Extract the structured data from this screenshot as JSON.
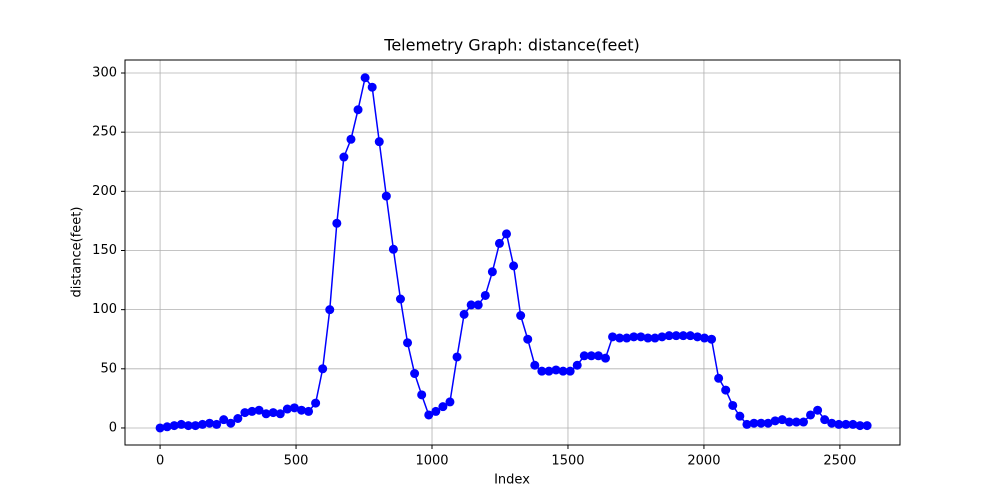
{
  "chart_data": {
    "type": "line",
    "title": "Telemetry Graph: distance(feet)",
    "x_label": "Index",
    "y_label": "distance(feet)",
    "x": [
      0,
      26,
      52,
      78,
      104,
      130,
      156,
      182,
      208,
      234,
      260,
      286,
      312,
      338,
      364,
      390,
      416,
      442,
      468,
      494,
      520,
      546,
      572,
      598,
      624,
      650,
      676,
      702,
      728,
      754,
      780,
      806,
      832,
      858,
      884,
      910,
      936,
      962,
      988,
      1014,
      1040,
      1066,
      1092,
      1118,
      1144,
      1170,
      1196,
      1222,
      1248,
      1274,
      1300,
      1326,
      1352,
      1378,
      1404,
      1430,
      1456,
      1482,
      1508,
      1534,
      1560,
      1586,
      1612,
      1638,
      1664,
      1690,
      1716,
      1742,
      1768,
      1794,
      1820,
      1846,
      1872,
      1898,
      1924,
      1950,
      1976,
      2002,
      2028,
      2054,
      2080,
      2106,
      2132,
      2158,
      2184,
      2210,
      2236,
      2262,
      2288,
      2314,
      2340,
      2366,
      2392,
      2418,
      2444,
      2470,
      2496,
      2522,
      2548,
      2574,
      2600
    ],
    "series": [
      {
        "name": "distance(feet)",
        "color": "#0000ff",
        "values": [
          0,
          1,
          2,
          3,
          2,
          2,
          3,
          4,
          3,
          7,
          4,
          8,
          13,
          14,
          15,
          12,
          13,
          12,
          16,
          17,
          15,
          14,
          21,
          50,
          100,
          173,
          229,
          244,
          269,
          296,
          288,
          242,
          196,
          151,
          109,
          72,
          46,
          28,
          11,
          14,
          18,
          22,
          60,
          96,
          104,
          104,
          112,
          132,
          156,
          164,
          137,
          95,
          75,
          53,
          48,
          48,
          49,
          48,
          48,
          53,
          61,
          61,
          61,
          59,
          77,
          76,
          76,
          77,
          77,
          76,
          76,
          77,
          78,
          78,
          78,
          78,
          77,
          76,
          75,
          42,
          32,
          19,
          10,
          3,
          4,
          4,
          4,
          6,
          7,
          5,
          5,
          5,
          11,
          15,
          7,
          4,
          3,
          3,
          3,
          2,
          2
        ]
      }
    ],
    "xlim": [
      -129,
      2721
    ],
    "ylim": [
      -14.4,
      311
    ],
    "xticks": [
      0,
      500,
      1000,
      1500,
      2000,
      2500
    ],
    "yticks": [
      0,
      50,
      100,
      150,
      200,
      250,
      300
    ],
    "grid": true
  }
}
